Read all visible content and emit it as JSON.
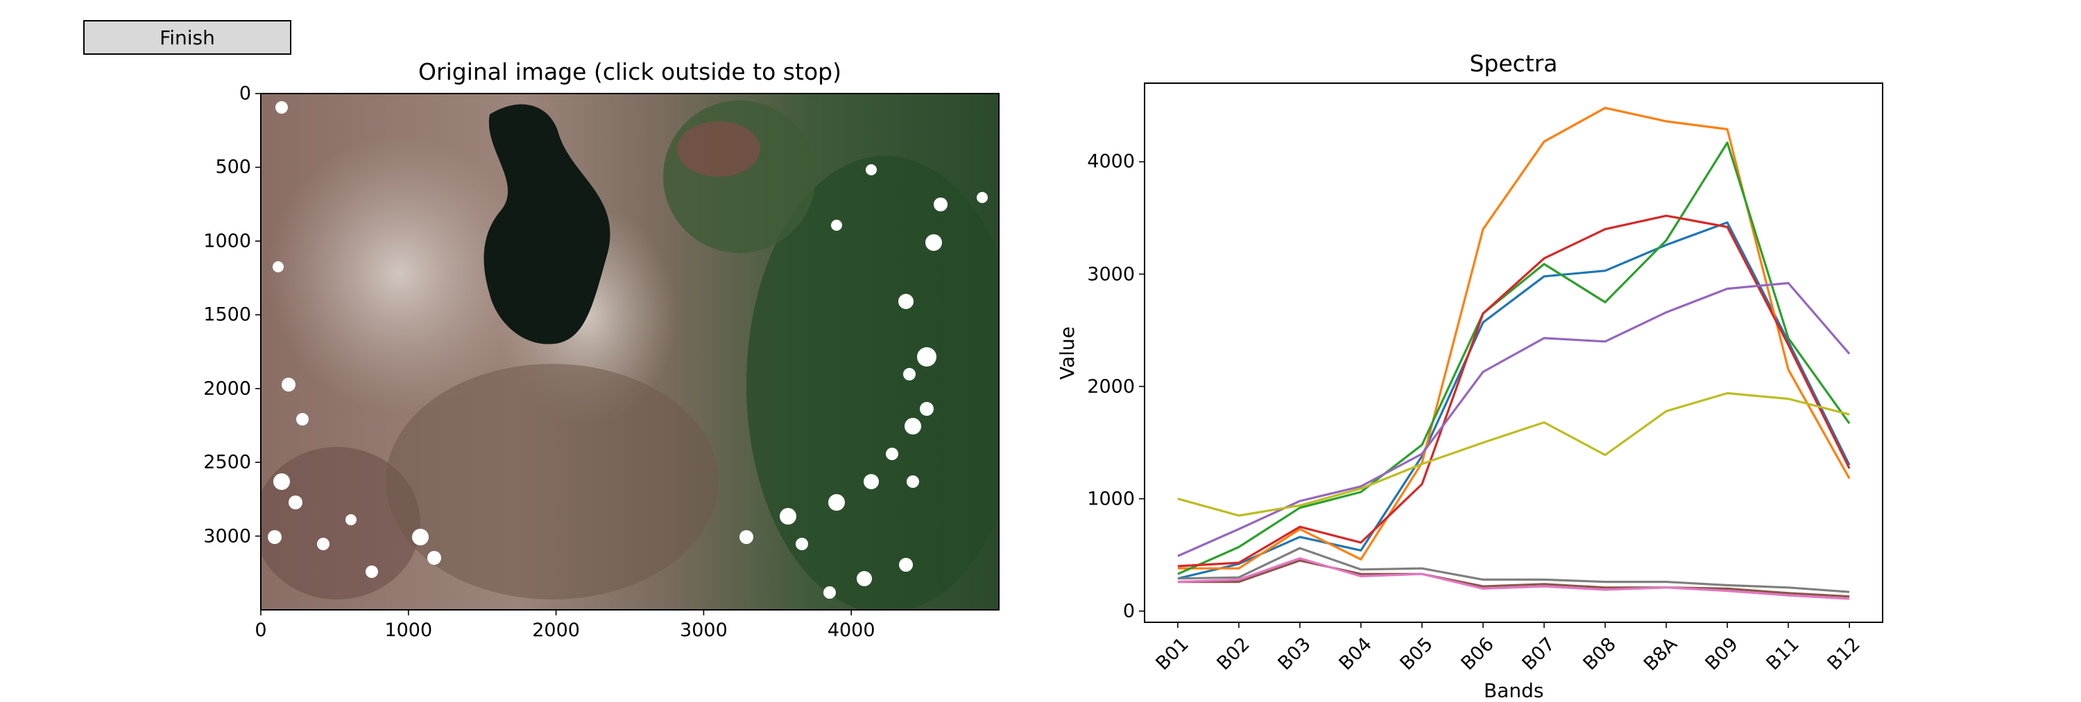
{
  "toolbar": {
    "finish_label": "Finish"
  },
  "image_panel": {
    "title": "Original image (click outside to stop)",
    "x_ticks": [
      "0",
      "1000",
      "2000",
      "3000",
      "4000"
    ],
    "x_tick_values": [
      0,
      1000,
      2000,
      3000,
      4000
    ],
    "y_ticks": [
      "0",
      "500",
      "1000",
      "1500",
      "2000",
      "2500",
      "3000"
    ],
    "y_tick_values": [
      0,
      500,
      1000,
      1500,
      2000,
      2500,
      3000
    ],
    "x_range": [
      0,
      5000
    ],
    "y_range": [
      0,
      3500
    ]
  },
  "chart_data": {
    "type": "line",
    "title": "Spectra",
    "xlabel": "Bands",
    "ylabel": "Value",
    "categories": [
      "B01",
      "B02",
      "B03",
      "B04",
      "B05",
      "B06",
      "B07",
      "B08",
      "B8A",
      "B09",
      "B11",
      "B12"
    ],
    "yticks": [
      0,
      1000,
      2000,
      3000,
      4000
    ],
    "ylim": [
      -100,
      4700
    ],
    "grid": false,
    "series": [
      {
        "color": "#1f77b4",
        "values": [
          290,
          420,
          660,
          540,
          1380,
          2570,
          2980,
          3030,
          3260,
          3460,
          2400,
          1300
        ]
      },
      {
        "color": "#ff7f0e",
        "values": [
          380,
          380,
          730,
          460,
          1320,
          3400,
          4180,
          4480,
          4360,
          4290,
          2150,
          1180
        ]
      },
      {
        "color": "#2ca02c",
        "values": [
          330,
          570,
          920,
          1060,
          1480,
          2650,
          3090,
          2750,
          3300,
          4170,
          2430,
          1670
        ]
      },
      {
        "color": "#d62728",
        "values": [
          400,
          430,
          750,
          610,
          1130,
          2650,
          3140,
          3400,
          3520,
          3420,
          2370,
          1270
        ]
      },
      {
        "color": "#9467bd",
        "values": [
          490,
          730,
          980,
          1110,
          1400,
          2130,
          2430,
          2400,
          2660,
          2870,
          2920,
          2290
        ]
      },
      {
        "color": "#8c564b",
        "values": [
          260,
          260,
          450,
          330,
          330,
          220,
          240,
          210,
          210,
          200,
          160,
          130
        ]
      },
      {
        "color": "#e377c2",
        "values": [
          260,
          280,
          470,
          310,
          330,
          200,
          220,
          190,
          210,
          180,
          140,
          110
        ]
      },
      {
        "color": "#7f7f7f",
        "values": [
          290,
          300,
          560,
          370,
          380,
          280,
          280,
          260,
          260,
          230,
          210,
          170
        ]
      },
      {
        "color": "#bcbd22",
        "values": [
          1000,
          850,
          940,
          1090,
          1310,
          1500,
          1680,
          1390,
          1780,
          1940,
          1890,
          1750
        ]
      }
    ]
  }
}
